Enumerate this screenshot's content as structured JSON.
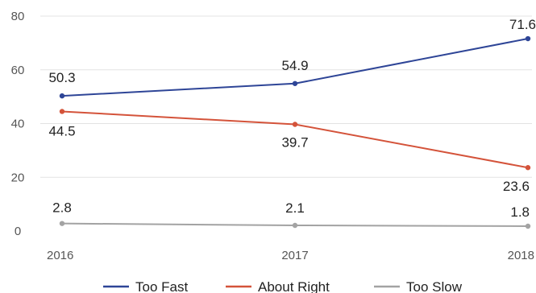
{
  "chart_data": {
    "type": "line",
    "x": [
      "2016",
      "2017",
      "2018"
    ],
    "yticks": [
      "0",
      "20",
      "40",
      "60",
      "80"
    ],
    "ylim": [
      0,
      80
    ],
    "grid": true,
    "legend_position": "bottom",
    "series": [
      {
        "name": "Too Fast",
        "values": [
          50.3,
          54.9,
          71.6
        ],
        "labels": [
          "50.3",
          "54.9",
          "71.6"
        ],
        "color": "#2e4597"
      },
      {
        "name": "About Right",
        "values": [
          44.5,
          39.7,
          23.6
        ],
        "labels": [
          "44.5",
          "39.7",
          "23.6"
        ],
        "color": "#d4533a"
      },
      {
        "name": "Too Slow",
        "values": [
          2.8,
          2.1,
          1.8
        ],
        "labels": [
          "2.8",
          "2.1",
          "1.8"
        ],
        "color": "#a3a3a3"
      }
    ]
  }
}
